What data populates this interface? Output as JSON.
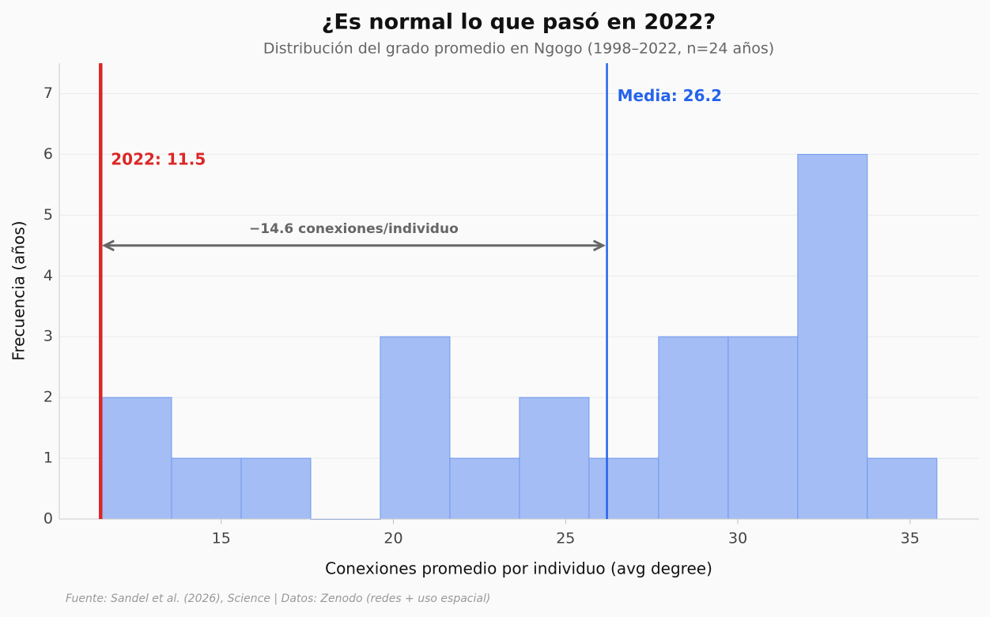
{
  "chart_data": {
    "type": "histogram",
    "title": "¿Es normal lo que pasó en 2022?",
    "subtitle": "Distribución del grado promedio en Ngogo (1998–2022, n=24 años)",
    "x_label": "Conexiones promedio por individuo (avg degree)",
    "y_label": "Frecuencia (años)",
    "bins": [
      11.54,
      13.56,
      15.58,
      17.6,
      19.62,
      21.64,
      23.66,
      25.68,
      27.7,
      29.72,
      31.74,
      33.76,
      35.78
    ],
    "counts": [
      2,
      1,
      1,
      0,
      3,
      1,
      2,
      1,
      3,
      3,
      6,
      1
    ],
    "color": "#a5bdf5",
    "edge_color": "#6e98ef",
    "xlim": [
      10.3,
      37.0
    ],
    "ylim": [
      0,
      7.5
    ],
    "xticks": [
      15,
      20,
      25,
      30,
      35
    ],
    "yticks": [
      0,
      1,
      2,
      3,
      4,
      5,
      6,
      7
    ],
    "grid": true,
    "reference_lines": [
      {
        "value": 11.5,
        "label": "2022: 11.5",
        "color": "#dc2626"
      },
      {
        "value": 26.2,
        "label": "Media: 26.2",
        "color": "#2563eb"
      }
    ],
    "arrow": {
      "y": 4.5,
      "label": "−14.6 conexiones/individuo",
      "color": "#666666"
    },
    "source": "Fuente: Sandel et al. (2026), Science | Datos: Zenodo (redes + uso espacial)"
  }
}
